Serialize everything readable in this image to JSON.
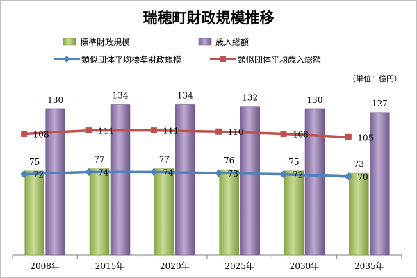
{
  "chart_data": {
    "type": "bar",
    "title": "瑞穂町財政規模推移",
    "unit_label": "（単位：億円）",
    "categories": [
      "2008年",
      "2015年",
      "2020年",
      "2025年",
      "2030年",
      "2035年"
    ],
    "series": [
      {
        "name": "標準財政規模",
        "type": "bar",
        "values": [
          75,
          77,
          77,
          76,
          75,
          73
        ],
        "color": "#9bbb59"
      },
      {
        "name": "歳入総額",
        "type": "bar",
        "values": [
          130,
          134,
          134,
          132,
          130,
          127
        ],
        "color": "#8064a2"
      },
      {
        "name": "類似団体平均標準財政規模",
        "type": "line",
        "values": [
          72,
          74,
          74,
          73,
          72,
          70
        ],
        "color": "#4f81bd"
      },
      {
        "name": "類似団体平均歳入総額",
        "type": "line",
        "values": [
          108,
          111,
          111,
          110,
          108,
          105
        ],
        "color": "#c0504d"
      }
    ],
    "ylim": [
      0,
      180
    ],
    "grid": false,
    "legend_position": "top"
  }
}
